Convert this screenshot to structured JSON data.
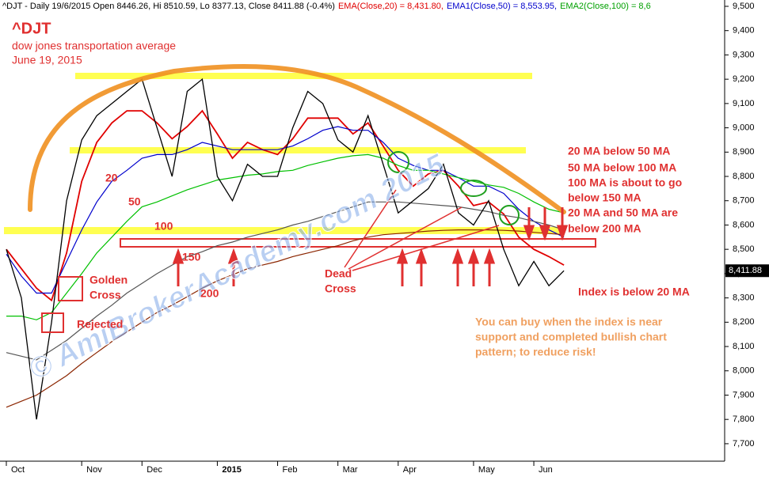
{
  "chart_data": {
    "type": "line",
    "header": [
      {
        "text": "^DJT - Daily 19/6/2015 Open 8446.26, Hi 8510.59, Lo 8377.13, Close 8411.88 (-0.4%)",
        "color": "#000000"
      },
      {
        "text": "EMA(Close,20) = 8,431.80,",
        "color": "#e00000"
      },
      {
        "text": "EMA1(Close,50) = 8,553.95,",
        "color": "#0000cc"
      },
      {
        "text": "EMA2(Close,100) = 8,6",
        "color": "#00a000"
      }
    ],
    "categories": [
      "Oct",
      null,
      null,
      null,
      null,
      "Nov",
      null,
      null,
      null,
      "Dec",
      null,
      null,
      null,
      null,
      "2015",
      null,
      null,
      null,
      "Feb",
      null,
      null,
      null,
      "Mar",
      null,
      null,
      null,
      "Apr",
      null,
      null,
      null,
      null,
      "May",
      null,
      null,
      null,
      "Jun",
      null,
      null
    ],
    "close": {
      "color": "#000000",
      "values": [
        8500,
        8300,
        7800,
        8200,
        8700,
        8950,
        9050,
        9100,
        9150,
        9200,
        9000,
        8800,
        9150,
        9200,
        8800,
        8700,
        8850,
        8800,
        8800,
        9000,
        9150,
        9100,
        8950,
        8900,
        9050,
        8850,
        8650,
        8700,
        8750,
        8850,
        8650,
        8600,
        8700,
        8500,
        8350,
        8450,
        8350,
        8412
      ]
    },
    "series": [
      {
        "name": "20",
        "color": "#e00000",
        "values": [
          8500,
          8420,
          8340,
          8290,
          8485,
          8780,
          8940,
          9020,
          9070,
          9070,
          9020,
          8955,
          9005,
          9070,
          8975,
          8875,
          8940,
          8910,
          8890,
          8955,
          9040,
          9040,
          9040,
          8975,
          9020,
          8925,
          8825,
          8760,
          8810,
          8825,
          8760,
          8680,
          8695,
          8645,
          8550,
          8500,
          8470,
          8435
        ]
      },
      {
        "name": "50",
        "color": "#0000cc",
        "values": [
          8480,
          8390,
          8320,
          8320,
          8450,
          8580,
          8695,
          8780,
          8825,
          8875,
          8890,
          8890,
          8910,
          8940,
          8925,
          8910,
          8910,
          8910,
          8910,
          8925,
          8955,
          8990,
          9005,
          8990,
          8990,
          8940,
          8875,
          8845,
          8825,
          8825,
          8795,
          8760,
          8760,
          8730,
          8665,
          8615,
          8580,
          8550
        ]
      },
      {
        "name": "100",
        "color": "#00c000",
        "values": [
          8225,
          8225,
          8210,
          8240,
          8320,
          8400,
          8485,
          8550,
          8615,
          8675,
          8695,
          8720,
          8745,
          8765,
          8785,
          8795,
          8805,
          8810,
          8820,
          8825,
          8845,
          8860,
          8875,
          8885,
          8890,
          8875,
          8845,
          8825,
          8825,
          8810,
          8795,
          8780,
          8765,
          8755,
          8730,
          8695,
          8665,
          8650
        ]
      },
      {
        "name": "150",
        "color": "#555555",
        "values": [
          8075,
          8060,
          8045,
          8085,
          8125,
          8175,
          8225,
          8270,
          8320,
          8360,
          8400,
          8435,
          8470,
          8490,
          8515,
          8530,
          8550,
          8565,
          8580,
          8600,
          8615,
          8635,
          8655,
          8675,
          8695,
          8695,
          8695,
          8690,
          8685,
          8680,
          8675,
          8665,
          8655,
          8640,
          8630,
          8615,
          8600,
          8580
        ]
      },
      {
        "name": "200",
        "color": "#8b2500",
        "values": [
          7850,
          7875,
          7900,
          7940,
          7980,
          8030,
          8075,
          8120,
          8160,
          8200,
          8240,
          8270,
          8305,
          8340,
          8370,
          8395,
          8420,
          8435,
          8450,
          8470,
          8485,
          8500,
          8515,
          8535,
          8550,
          8560,
          8565,
          8570,
          8575,
          8578,
          8580,
          8580,
          8580,
          8578,
          8575,
          8570,
          8565,
          8560
        ]
      }
    ],
    "ylim": [
      7563,
      9526
    ],
    "yticks": [
      {
        "value": 7700,
        "label": "7,700"
      },
      {
        "value": 7800,
        "label": "7,800"
      },
      {
        "value": 7900,
        "label": "7,900"
      },
      {
        "value": 8000,
        "label": "8,000"
      },
      {
        "value": 8100,
        "label": "8,100"
      },
      {
        "value": 8200,
        "label": "8,200"
      },
      {
        "value": 8300,
        "label": "8,300"
      },
      {
        "value": 8400,
        "label": "8,400"
      },
      {
        "value": 8500,
        "label": "8,500"
      },
      {
        "value": 8600,
        "label": "8,600"
      },
      {
        "value": 8700,
        "label": "8,700"
      },
      {
        "value": 8800,
        "label": "8,800"
      },
      {
        "value": 8900,
        "label": "8,900"
      },
      {
        "value": 9000,
        "label": "9,000"
      },
      {
        "value": 9100,
        "label": "9,100"
      },
      {
        "value": 9200,
        "label": "9,200"
      },
      {
        "value": 9300,
        "label": "9,300"
      },
      {
        "value": 9400,
        "label": "9,400"
      },
      {
        "value": 9500,
        "label": "9,500"
      }
    ],
    "last_price": {
      "value": 8411.88,
      "label": "8,411.88"
    },
    "title": "^DJT",
    "subtitle": "dow jones transportation average",
    "date": "June 19, 2015",
    "annotations": [
      {
        "text": "Golden",
        "color": "#e03030"
      },
      {
        "text": "Cross",
        "color": "#e03030"
      },
      {
        "text": "Rejected",
        "color": "#e03030"
      },
      {
        "text": "Dead",
        "color": "#e03030"
      },
      {
        "text": "Cross",
        "color": "#e03030"
      },
      {
        "text": "20 MA below 50 MA",
        "color": "#e03030"
      },
      {
        "text": "50 MA below 100 MA",
        "color": "#e03030"
      },
      {
        "text": "100 MA is about to go",
        "color": "#e03030"
      },
      {
        "text": "below 150 MA",
        "color": "#e03030"
      },
      {
        "text": "20 MA and 50 MA are",
        "color": "#e03030"
      },
      {
        "text": "below 200 MA",
        "color": "#e03030"
      },
      {
        "text": "Index is below 20 MA",
        "color": "#e03030"
      },
      {
        "text": "You can buy when the index is near",
        "color": "#f0a060"
      },
      {
        "text": "support and completed bullish chart",
        "color": "#f0a060"
      },
      {
        "text": "pattern; to reduce risk!",
        "color": "#f0a060"
      }
    ],
    "watermark": "© AmiBrokerAcademy.com 2015"
  }
}
